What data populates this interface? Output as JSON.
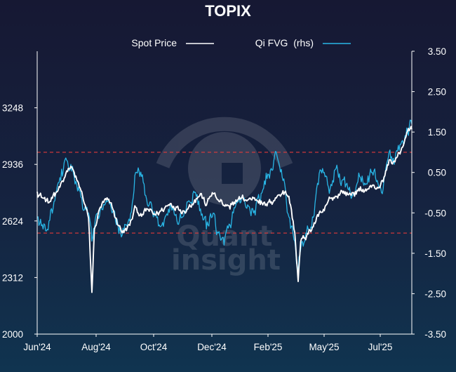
{
  "chart_data": {
    "type": "line",
    "title": "TOPIX",
    "legend_position": "top-center",
    "grid": false,
    "x_range": [
      "2024-06-01",
      "2025-08-20"
    ],
    "x_ticks": [
      "Jun'24",
      "Aug'24",
      "Oct'24",
      "Dec'24",
      "Feb'25",
      "May'25",
      "Jul'25"
    ],
    "y_left": {
      "range": [
        2000,
        3560
      ],
      "ticks": [
        "2000",
        "2312",
        "2624",
        "2936",
        "3248"
      ]
    },
    "y_right": {
      "range": [
        -3.5,
        3.5
      ],
      "ticks": [
        "-3.50",
        "-2.50",
        "-1.50",
        "-0.50",
        "0.50",
        "1.50",
        "2.50",
        "3.50"
      ]
    },
    "reference_lines": [
      {
        "axis": "right",
        "value": 1.0,
        "color": "#e03a3a"
      },
      {
        "axis": "right",
        "value": -1.0,
        "color": "#e03a3a"
      }
    ],
    "series": [
      {
        "name": "Spot Price",
        "axis": "left",
        "color": "#ffffff",
        "points": [
          [
            "2024-06-01",
            2785
          ],
          [
            "2024-06-08",
            2750
          ],
          [
            "2024-06-15",
            2725
          ],
          [
            "2024-06-22",
            2760
          ],
          [
            "2024-06-29",
            2830
          ],
          [
            "2024-07-06",
            2900
          ],
          [
            "2024-07-11",
            2925
          ],
          [
            "2024-07-18",
            2850
          ],
          [
            "2024-07-25",
            2760
          ],
          [
            "2024-08-01",
            2640
          ],
          [
            "2024-08-05",
            2230
          ],
          [
            "2024-08-08",
            2580
          ],
          [
            "2024-08-15",
            2700
          ],
          [
            "2024-08-22",
            2740
          ],
          [
            "2024-08-29",
            2700
          ],
          [
            "2024-09-05",
            2600
          ],
          [
            "2024-09-12",
            2560
          ],
          [
            "2024-09-19",
            2600
          ],
          [
            "2024-09-26",
            2700
          ],
          [
            "2024-10-03",
            2650
          ],
          [
            "2024-10-10",
            2690
          ],
          [
            "2024-10-17",
            2660
          ],
          [
            "2024-10-24",
            2670
          ],
          [
            "2024-10-31",
            2700
          ],
          [
            "2024-11-07",
            2720
          ],
          [
            "2024-11-14",
            2700
          ],
          [
            "2024-11-21",
            2680
          ],
          [
            "2024-11-28",
            2700
          ],
          [
            "2024-12-05",
            2740
          ],
          [
            "2024-12-12",
            2775
          ],
          [
            "2024-12-19",
            2710
          ],
          [
            "2024-12-26",
            2780
          ],
          [
            "2025-01-02",
            2740
          ],
          [
            "2025-01-09",
            2710
          ],
          [
            "2025-01-16",
            2690
          ],
          [
            "2025-01-23",
            2740
          ],
          [
            "2025-01-30",
            2750
          ],
          [
            "2025-02-06",
            2740
          ],
          [
            "2025-02-13",
            2750
          ],
          [
            "2025-02-20",
            2740
          ],
          [
            "2025-02-27",
            2710
          ],
          [
            "2025-03-06",
            2730
          ],
          [
            "2025-03-13",
            2760
          ],
          [
            "2025-03-20",
            2790
          ],
          [
            "2025-03-27",
            2760
          ],
          [
            "2025-04-03",
            2560
          ],
          [
            "2025-04-07",
            2290
          ],
          [
            "2025-04-10",
            2510
          ],
          [
            "2025-04-17",
            2540
          ],
          [
            "2025-04-24",
            2590
          ],
          [
            "2025-05-01",
            2650
          ],
          [
            "2025-05-08",
            2680
          ],
          [
            "2025-05-15",
            2750
          ],
          [
            "2025-05-22",
            2760
          ],
          [
            "2025-05-29",
            2790
          ],
          [
            "2025-06-05",
            2770
          ],
          [
            "2025-06-12",
            2780
          ],
          [
            "2025-06-19",
            2790
          ],
          [
            "2025-06-26",
            2800
          ],
          [
            "2025-07-03",
            2810
          ],
          [
            "2025-07-10",
            2810
          ],
          [
            "2025-07-17",
            2840
          ],
          [
            "2025-07-24",
            2960
          ],
          [
            "2025-07-31",
            2950
          ],
          [
            "2025-08-07",
            3010
          ],
          [
            "2025-08-14",
            3110
          ],
          [
            "2025-08-20",
            3130
          ]
        ]
      },
      {
        "name": "Qi FVG  (rhs)",
        "axis": "right",
        "color": "#29b6e6",
        "points": [
          [
            "2024-06-01",
            -0.6
          ],
          [
            "2024-06-08",
            -0.9
          ],
          [
            "2024-06-15",
            -0.7
          ],
          [
            "2024-06-22",
            -0.2
          ],
          [
            "2024-06-29",
            0.3
          ],
          [
            "2024-07-06",
            0.8
          ],
          [
            "2024-07-11",
            0.7
          ],
          [
            "2024-07-18",
            0.2
          ],
          [
            "2024-07-25",
            -0.4
          ],
          [
            "2024-08-01",
            -0.5
          ],
          [
            "2024-08-05",
            -1.2
          ],
          [
            "2024-08-08",
            -0.9
          ],
          [
            "2024-08-15",
            -0.4
          ],
          [
            "2024-08-22",
            -0.2
          ],
          [
            "2024-08-29",
            -0.5
          ],
          [
            "2024-09-05",
            -0.8
          ],
          [
            "2024-09-12",
            -1.0
          ],
          [
            "2024-09-19",
            -0.7
          ],
          [
            "2024-09-26",
            0.5
          ],
          [
            "2024-10-03",
            0.4
          ],
          [
            "2024-10-10",
            -0.3
          ],
          [
            "2024-10-17",
            -0.6
          ],
          [
            "2024-10-24",
            -0.8
          ],
          [
            "2024-10-31",
            -0.6
          ],
          [
            "2024-11-07",
            -0.3
          ],
          [
            "2024-11-14",
            -0.7
          ],
          [
            "2024-11-21",
            -0.6
          ],
          [
            "2024-11-28",
            -0.2
          ],
          [
            "2024-12-05",
            0.0
          ],
          [
            "2024-12-12",
            -0.4
          ],
          [
            "2024-12-19",
            -0.9
          ],
          [
            "2024-12-26",
            -0.6
          ],
          [
            "2025-01-02",
            -1.0
          ],
          [
            "2025-01-09",
            -1.3
          ],
          [
            "2025-01-16",
            -0.8
          ],
          [
            "2025-01-23",
            -0.3
          ],
          [
            "2025-01-30",
            -0.1
          ],
          [
            "2025-02-06",
            -0.3
          ],
          [
            "2025-02-13",
            -0.5
          ],
          [
            "2025-02-20",
            -0.2
          ],
          [
            "2025-02-27",
            0.2
          ],
          [
            "2025-03-06",
            0.6
          ],
          [
            "2025-03-13",
            0.9
          ],
          [
            "2025-03-20",
            0.3
          ],
          [
            "2025-03-27",
            -0.6
          ],
          [
            "2025-04-03",
            -1.2
          ],
          [
            "2025-04-07",
            -2.0
          ],
          [
            "2025-04-10",
            -1.4
          ],
          [
            "2025-04-17",
            -1.0
          ],
          [
            "2025-04-24",
            -0.6
          ],
          [
            "2025-05-01",
            0.2
          ],
          [
            "2025-05-08",
            0.5
          ],
          [
            "2025-05-15",
            0.1
          ],
          [
            "2025-05-22",
            0.6
          ],
          [
            "2025-05-29",
            0.3
          ],
          [
            "2025-06-05",
            0.1
          ],
          [
            "2025-06-12",
            0.0
          ],
          [
            "2025-06-19",
            0.4
          ],
          [
            "2025-06-26",
            0.2
          ],
          [
            "2025-07-03",
            0.5
          ],
          [
            "2025-07-10",
            0.3
          ],
          [
            "2025-07-17",
            0.1
          ],
          [
            "2025-07-24",
            1.0
          ],
          [
            "2025-07-31",
            0.8
          ],
          [
            "2025-08-07",
            1.2
          ],
          [
            "2025-08-14",
            1.6
          ],
          [
            "2025-08-20",
            1.7
          ]
        ]
      }
    ]
  },
  "watermark": {
    "line1": "Quant",
    "line2": "insight"
  }
}
